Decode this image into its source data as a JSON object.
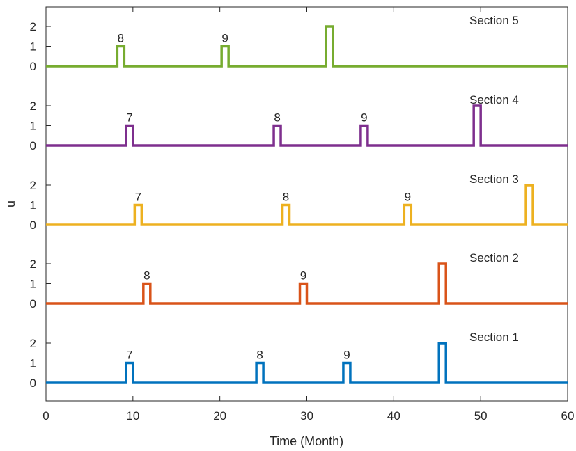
{
  "chart_data": {
    "type": "line",
    "xlabel": "Time (Month)",
    "ylabel": "u",
    "xlim": [
      0,
      60
    ],
    "xticks": [
      "0",
      "10",
      "20",
      "30",
      "40",
      "50",
      "60"
    ],
    "yticks": [
      "0",
      "1",
      "2"
    ],
    "grid": false,
    "series": [
      {
        "name": "Section 1",
        "color": "#0072BD",
        "pulses": [
          {
            "start": 9.2,
            "end": 10.0,
            "value": 1,
            "label": "7"
          },
          {
            "start": 24.2,
            "end": 25.0,
            "value": 1,
            "label": "8"
          },
          {
            "start": 34.2,
            "end": 35.0,
            "value": 1,
            "label": "9"
          },
          {
            "start": 45.2,
            "end": 46.0,
            "value": 2,
            "label": ""
          }
        ]
      },
      {
        "name": "Section 2",
        "color": "#D95319",
        "pulses": [
          {
            "start": 11.2,
            "end": 12.0,
            "value": 1,
            "label": "8"
          },
          {
            "start": 29.2,
            "end": 30.0,
            "value": 1,
            "label": "9"
          },
          {
            "start": 45.2,
            "end": 46.0,
            "value": 2,
            "label": ""
          }
        ]
      },
      {
        "name": "Section 3",
        "color": "#EDB120",
        "pulses": [
          {
            "start": 10.2,
            "end": 11.0,
            "value": 1,
            "label": "7"
          },
          {
            "start": 27.2,
            "end": 28.0,
            "value": 1,
            "label": "8"
          },
          {
            "start": 41.2,
            "end": 42.0,
            "value": 1,
            "label": "9"
          },
          {
            "start": 55.2,
            "end": 56.0,
            "value": 2,
            "label": ""
          }
        ]
      },
      {
        "name": "Section 4",
        "color": "#7E2F8E",
        "pulses": [
          {
            "start": 9.2,
            "end": 10.0,
            "value": 1,
            "label": "7"
          },
          {
            "start": 26.2,
            "end": 27.0,
            "value": 1,
            "label": "8"
          },
          {
            "start": 36.2,
            "end": 37.0,
            "value": 1,
            "label": "9"
          },
          {
            "start": 49.2,
            "end": 50.0,
            "value": 2,
            "label": ""
          }
        ]
      },
      {
        "name": "Section 5",
        "color": "#77AC30",
        "pulses": [
          {
            "start": 8.2,
            "end": 9.0,
            "value": 1,
            "label": "8"
          },
          {
            "start": 20.2,
            "end": 21.0,
            "value": 1,
            "label": "9"
          },
          {
            "start": 32.2,
            "end": 33.0,
            "value": 2,
            "label": ""
          }
        ]
      }
    ]
  }
}
